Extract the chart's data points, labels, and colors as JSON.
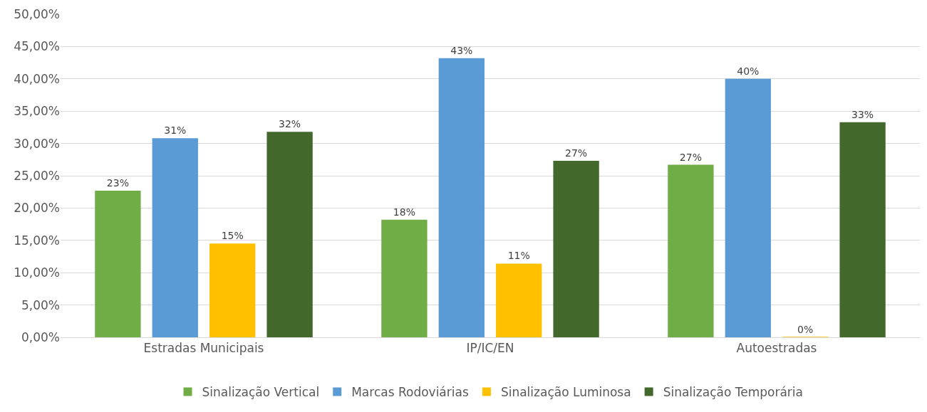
{
  "chart_data": {
    "type": "bar",
    "categories": [
      "Estradas Municipais",
      "IP/IC/EN",
      "Autoestradas"
    ],
    "series": [
      {
        "name": "Sinalização Vertical",
        "color": "#70ad47",
        "values": [
          22.7,
          18.2,
          26.7
        ],
        "value_labels": [
          "23%",
          "18%",
          "27%"
        ]
      },
      {
        "name": "Marcas Rodoviárias",
        "color": "#5b9bd5",
        "values": [
          30.8,
          43.2,
          40.0
        ],
        "value_labels": [
          "31%",
          "43%",
          "40%"
        ]
      },
      {
        "name": "Sinalização Luminosa",
        "color": "#ffc000",
        "values": [
          14.5,
          11.4,
          0
        ],
        "value_labels": [
          "15%",
          "11%",
          "0%"
        ]
      },
      {
        "name": "Sinalização Temporária",
        "color": "#43682b",
        "values": [
          31.8,
          27.3,
          33.3
        ],
        "value_labels": [
          "32%",
          "27%",
          "33%"
        ]
      }
    ],
    "ylim": [
      0,
      50
    ],
    "yticks": [
      {
        "value": 0,
        "label": "0,00%"
      },
      {
        "value": 5,
        "label": "5,00%"
      },
      {
        "value": 10,
        "label": "10,00%"
      },
      {
        "value": 15,
        "label": "15,00%"
      },
      {
        "value": 20,
        "label": "20,00%"
      },
      {
        "value": 25,
        "label": "25,00%"
      },
      {
        "value": 30,
        "label": "30,00%"
      },
      {
        "value": 35,
        "label": "35,00%"
      },
      {
        "value": 40,
        "label": "40,00%"
      },
      {
        "value": 45,
        "label": "45,00%"
      },
      {
        "value": 50,
        "label": "50,00%"
      }
    ],
    "grid": "y",
    "legend": "bottom"
  }
}
